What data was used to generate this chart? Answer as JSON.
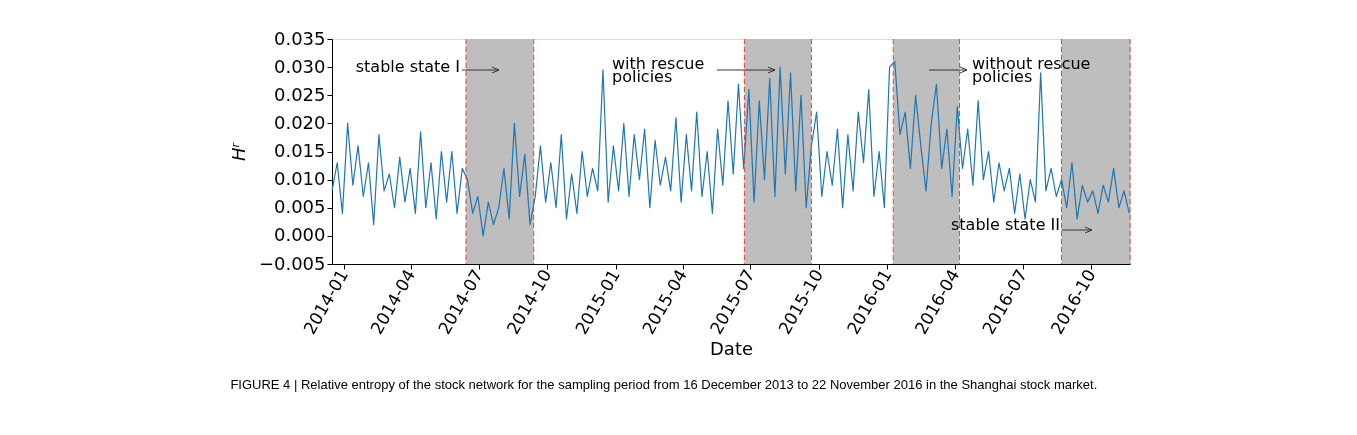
{
  "chart_data": {
    "type": "line",
    "xlabel": "Date",
    "ylabel": "Hʳ",
    "x": [
      "2013-12-16",
      "2013-12-23",
      "2013-12-30",
      "2014-01-06",
      "2014-01-13",
      "2014-01-20",
      "2014-01-27",
      "2014-02-03",
      "2014-02-10",
      "2014-02-17",
      "2014-02-24",
      "2014-03-03",
      "2014-03-10",
      "2014-03-17",
      "2014-03-24",
      "2014-03-31",
      "2014-04-07",
      "2014-04-14",
      "2014-04-21",
      "2014-04-28",
      "2014-05-05",
      "2014-05-12",
      "2014-05-19",
      "2014-05-26",
      "2014-06-02",
      "2014-06-09",
      "2014-06-16",
      "2014-06-23",
      "2014-06-30",
      "2014-07-07",
      "2014-07-14",
      "2014-07-21",
      "2014-07-28",
      "2014-08-04",
      "2014-08-11",
      "2014-08-18",
      "2014-08-25",
      "2014-09-01",
      "2014-09-08",
      "2014-09-15",
      "2014-09-22",
      "2014-09-29",
      "2014-10-06",
      "2014-10-13",
      "2014-10-20",
      "2014-10-27",
      "2014-11-03",
      "2014-11-10",
      "2014-11-17",
      "2014-11-24",
      "2014-12-01",
      "2014-12-08",
      "2014-12-15",
      "2014-12-22",
      "2014-12-29",
      "2015-01-05",
      "2015-01-12",
      "2015-01-19",
      "2015-01-26",
      "2015-02-02",
      "2015-02-09",
      "2015-02-16",
      "2015-02-23",
      "2015-03-02",
      "2015-03-09",
      "2015-03-16",
      "2015-03-23",
      "2015-03-30",
      "2015-04-06",
      "2015-04-13",
      "2015-04-20",
      "2015-04-27",
      "2015-05-04",
      "2015-05-11",
      "2015-05-18",
      "2015-05-25",
      "2015-06-01",
      "2015-06-08",
      "2015-06-15",
      "2015-06-22",
      "2015-06-29",
      "2015-07-06",
      "2015-07-13",
      "2015-07-20",
      "2015-07-27",
      "2015-08-03",
      "2015-08-10",
      "2015-08-17",
      "2015-08-24",
      "2015-08-31",
      "2015-09-07",
      "2015-09-14",
      "2015-09-21",
      "2015-09-28",
      "2015-10-05",
      "2015-10-12",
      "2015-10-19",
      "2015-10-26",
      "2015-11-02",
      "2015-11-09",
      "2015-11-16",
      "2015-11-23",
      "2015-11-30",
      "2015-12-07",
      "2015-12-14",
      "2015-12-21",
      "2015-12-28",
      "2016-01-04",
      "2016-01-11",
      "2016-01-18",
      "2016-01-25",
      "2016-02-01",
      "2016-02-08",
      "2016-02-15",
      "2016-02-22",
      "2016-02-29",
      "2016-03-07",
      "2016-03-14",
      "2016-03-21",
      "2016-03-28",
      "2016-04-04",
      "2016-04-11",
      "2016-04-18",
      "2016-04-25",
      "2016-05-02",
      "2016-05-09",
      "2016-05-16",
      "2016-05-23",
      "2016-05-30",
      "2016-06-06",
      "2016-06-13",
      "2016-06-20",
      "2016-06-27",
      "2016-07-04",
      "2016-07-11",
      "2016-07-18",
      "2016-07-25",
      "2016-08-01",
      "2016-08-08",
      "2016-08-15",
      "2016-08-22",
      "2016-08-29",
      "2016-09-05",
      "2016-09-12",
      "2016-09-19",
      "2016-09-26",
      "2016-10-03",
      "2016-10-10",
      "2016-10-17",
      "2016-10-24",
      "2016-10-31",
      "2016-11-07",
      "2016-11-14",
      "2016-11-21"
    ],
    "series": [
      {
        "color": "#1f77b4",
        "values": [
          0.008,
          0.013,
          0.004,
          0.02,
          0.009,
          0.016,
          0.007,
          0.013,
          0.002,
          0.018,
          0.008,
          0.011,
          0.005,
          0.014,
          0.006,
          0.012,
          0.004,
          0.0185,
          0.005,
          0.013,
          0.003,
          0.015,
          0.006,
          0.015,
          0.004,
          0.012,
          0.01,
          0.004,
          0.007,
          0.0,
          0.006,
          0.002,
          0.005,
          0.012,
          0.003,
          0.02,
          0.007,
          0.0145,
          0.002,
          0.007,
          0.016,
          0.006,
          0.013,
          0.005,
          0.018,
          0.003,
          0.011,
          0.004,
          0.015,
          0.007,
          0.012,
          0.008,
          0.0295,
          0.006,
          0.016,
          0.008,
          0.02,
          0.007,
          0.018,
          0.01,
          0.019,
          0.005,
          0.017,
          0.009,
          0.014,
          0.008,
          0.021,
          0.006,
          0.018,
          0.008,
          0.022,
          0.007,
          0.015,
          0.004,
          0.019,
          0.009,
          0.024,
          0.011,
          0.027,
          0.012,
          0.026,
          0.006,
          0.024,
          0.01,
          0.028,
          0.007,
          0.03,
          0.011,
          0.029,
          0.008,
          0.025,
          0.005,
          0.016,
          0.022,
          0.007,
          0.015,
          0.009,
          0.019,
          0.005,
          0.018,
          0.008,
          0.022,
          0.013,
          0.026,
          0.007,
          0.015,
          0.005,
          0.03,
          0.031,
          0.018,
          0.022,
          0.012,
          0.025,
          0.016,
          0.008,
          0.02,
          0.027,
          0.012,
          0.019,
          0.007,
          0.023,
          0.012,
          0.019,
          0.009,
          0.024,
          0.01,
          0.015,
          0.006,
          0.013,
          0.008,
          0.012,
          0.004,
          0.011,
          0.003,
          0.01,
          0.006,
          0.029,
          0.008,
          0.012,
          0.007,
          0.01,
          0.005,
          0.013,
          0.003,
          0.009,
          0.006,
          0.008,
          0.004,
          0.009,
          0.006,
          0.012,
          0.005,
          0.008,
          0.004
        ]
      }
    ],
    "xlim": [
      "2013-12-16",
      "2016-11-22"
    ],
    "xticks": [
      {
        "value": "2014-01-01",
        "label": "2014-01"
      },
      {
        "value": "2014-04-01",
        "label": "2014-04"
      },
      {
        "value": "2014-07-01",
        "label": "2014-07"
      },
      {
        "value": "2014-10-01",
        "label": "2014-10"
      },
      {
        "value": "2015-01-01",
        "label": "2015-01"
      },
      {
        "value": "2015-04-01",
        "label": "2015-04"
      },
      {
        "value": "2015-07-01",
        "label": "2015-07"
      },
      {
        "value": "2015-10-01",
        "label": "2015-10"
      },
      {
        "value": "2016-01-01",
        "label": "2016-01"
      },
      {
        "value": "2016-04-01",
        "label": "2016-04"
      },
      {
        "value": "2016-07-01",
        "label": "2016-07"
      },
      {
        "value": "2016-10-01",
        "label": "2016-10"
      }
    ],
    "ylim": [
      -0.005,
      0.035
    ],
    "yticks": [
      {
        "value": -0.005,
        "label": "−0.005"
      },
      {
        "value": 0,
        "label": "0.000"
      },
      {
        "value": 0.005,
        "label": "0.005"
      },
      {
        "value": 0.01,
        "label": "0.010"
      },
      {
        "value": 0.015,
        "label": "0.015"
      },
      {
        "value": 0.02,
        "label": "0.020"
      },
      {
        "value": 0.025,
        "label": "0.025"
      },
      {
        "value": 0.03,
        "label": "0.030"
      },
      {
        "value": 0.035,
        "label": "0.035"
      }
    ],
    "bands": [
      {
        "axis": "x",
        "from": "2014-06-14",
        "to": "2014-09-13",
        "color": "#bebebe"
      },
      {
        "axis": "x",
        "from": "2015-06-23",
        "to": "2015-09-21",
        "color": "#bebebe"
      },
      {
        "axis": "x",
        "from": "2016-01-09",
        "to": "2016-04-07",
        "color": "#bebebe"
      },
      {
        "axis": "x",
        "from": "2016-08-22",
        "to": "2016-11-22",
        "color": "#bebebe"
      }
    ],
    "ref_lines": [
      {
        "axis": "x",
        "value": "2014-06-14",
        "color": "#e8403a",
        "line_style": "dashed"
      },
      {
        "axis": "x",
        "value": "2014-09-13",
        "color": "#e8403a",
        "line_style": "dashed"
      },
      {
        "axis": "x",
        "value": "2015-06-23",
        "color": "#e8403a",
        "line_style": "dashed"
      },
      {
        "axis": "x",
        "value": "2015-09-21",
        "color": "#e8403a",
        "line_style": "dashed"
      },
      {
        "axis": "x",
        "value": "2016-01-09",
        "color": "#e8403a",
        "line_style": "dashed"
      },
      {
        "axis": "x",
        "value": "2016-04-07",
        "color": "#e8403a",
        "line_style": "dashed"
      },
      {
        "axis": "x",
        "value": "2016-08-22",
        "color": "#e8403a",
        "line_style": "dashed"
      },
      {
        "axis": "x",
        "value": "2016-11-22",
        "color": "#e8403a",
        "line_style": "dashed"
      }
    ],
    "annotations": [
      "stable state I",
      "with rescue\npolicies",
      "without rescue\npolicies",
      "stable state II",
      "FIGURE 4 | Relative entropy of the stock network for the sampling period from 16 December 2013 to 22 November 2016 in the Shanghai stock market."
    ],
    "grid": false,
    "marker": "none",
    "line_style": "solid"
  }
}
